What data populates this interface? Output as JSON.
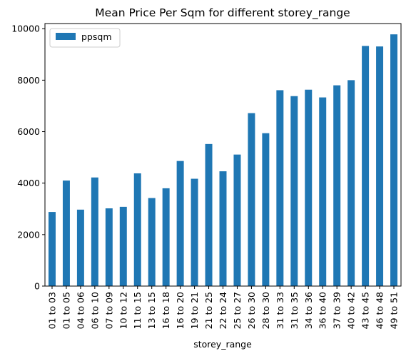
{
  "chart_data": {
    "type": "bar",
    "title": "Mean Price Per Sqm for different storey_range",
    "xlabel": "storey_range",
    "ylabel": "",
    "ylim": [
      0,
      10200
    ],
    "yticks": [
      0,
      2000,
      4000,
      6000,
      8000,
      10000
    ],
    "grid": false,
    "legend_position": "top-left",
    "categories": [
      "01 to 03",
      "01 to 05",
      "04 to 06",
      "06 to 10",
      "07 to 09",
      "10 to 12",
      "11 to 15",
      "13 to 15",
      "16 to 18",
      "16 to 20",
      "19 to 21",
      "21 to 25",
      "22 to 24",
      "25 to 27",
      "26 to 30",
      "28 to 30",
      "31 to 33",
      "31 to 35",
      "34 to 36",
      "36 to 40",
      "37 to 39",
      "40 to 42",
      "43 to 45",
      "46 to 48",
      "49 to 51"
    ],
    "series": [
      {
        "name": "ppsqm",
        "color": "#1f77b4",
        "values": [
          2880,
          4100,
          2970,
          4220,
          3020,
          3080,
          4380,
          3420,
          3800,
          4860,
          4170,
          5520,
          4460,
          5110,
          6720,
          5940,
          7610,
          7380,
          7630,
          7330,
          7800,
          8000,
          9330,
          9310,
          9780
        ]
      }
    ]
  }
}
